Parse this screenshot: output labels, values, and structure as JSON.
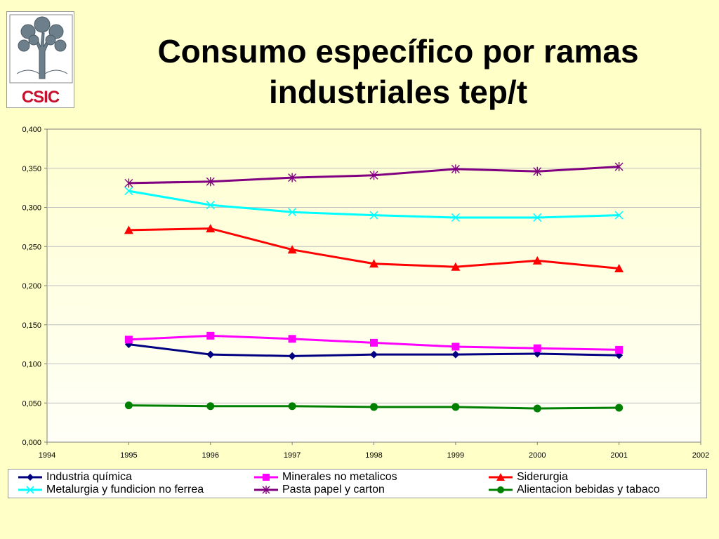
{
  "slide": {
    "title": "Consumo específico por  ramas industriales tep/t",
    "logo_text": "CSIC",
    "logo_icon": "csic-tree-logo"
  },
  "colors": {
    "background": "#FFFFC8",
    "plot_background": "#FFFFE8",
    "logo_red": "#C8102E"
  },
  "chart_data": {
    "type": "line",
    "title": "",
    "xlabel": "",
    "ylabel": "",
    "xlim": [
      1994,
      2002
    ],
    "ylim": [
      0,
      0.4
    ],
    "x_ticks": [
      "1994",
      "1995",
      "1996",
      "1997",
      "1998",
      "1999",
      "2000",
      "2001",
      "2002"
    ],
    "y_ticks": [
      "0,000",
      "0,050",
      "0,100",
      "0,150",
      "0,200",
      "0,250",
      "0,300",
      "0,350",
      "0,400"
    ],
    "grid": true,
    "legend_position": "bottom",
    "x": [
      1995,
      1996,
      1997,
      1998,
      1999,
      2000,
      2001
    ],
    "series": [
      {
        "name": "Industria química",
        "color": "#000080",
        "marker": "diamond",
        "values": [
          0.125,
          0.112,
          0.11,
          0.112,
          0.112,
          0.113,
          0.111
        ]
      },
      {
        "name": "Minerales no metalicos",
        "color": "#FF00FF",
        "marker": "square",
        "values": [
          0.131,
          0.136,
          0.132,
          0.127,
          0.122,
          0.12,
          0.118
        ]
      },
      {
        "name": "Siderurgia",
        "color": "#FF0000",
        "marker": "triangle",
        "values": [
          0.271,
          0.273,
          0.246,
          0.228,
          0.224,
          0.232,
          0.222
        ]
      },
      {
        "name": "Metalurgia y fundicion no ferrea",
        "color": "#00FFFF",
        "marker": "x",
        "values": [
          0.321,
          0.303,
          0.294,
          0.29,
          0.287,
          0.287,
          0.29
        ]
      },
      {
        "name": "Pasta papel y carton",
        "color": "#800080",
        "marker": "asterisk",
        "values": [
          0.331,
          0.333,
          0.338,
          0.341,
          0.349,
          0.346,
          0.352
        ]
      },
      {
        "name": "Alientacion bebidas y tabaco",
        "color": "#008000",
        "marker": "circle",
        "values": [
          0.047,
          0.046,
          0.046,
          0.045,
          0.045,
          0.043,
          0.044
        ]
      }
    ]
  }
}
